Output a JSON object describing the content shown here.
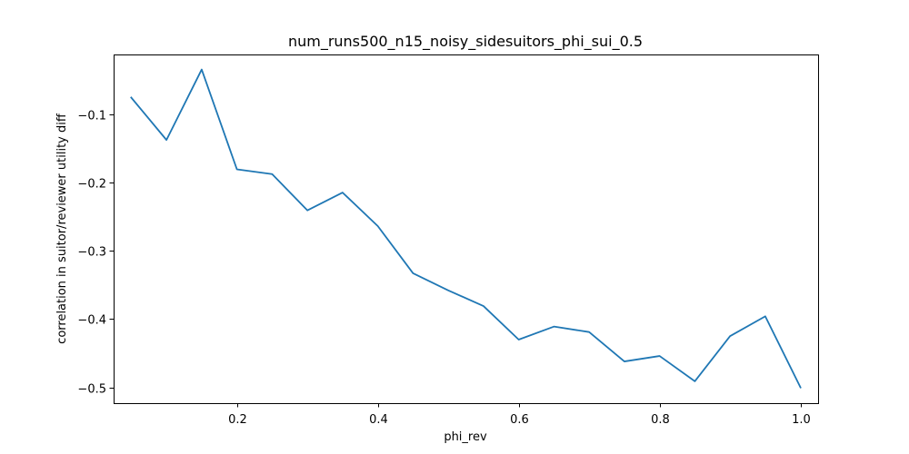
{
  "chart_data": {
    "type": "line",
    "title": "num_runs500_n15_noisy_sidesuitors_phi_sui_0.5",
    "xlabel": "phi_rev",
    "ylabel": "correlation in suitor/reviewer utility diff",
    "xlim": [
      0.025,
      1.025
    ],
    "ylim": [
      -0.523,
      -0.013
    ],
    "xticks": [
      0.2,
      0.4,
      0.6,
      0.8,
      1.0
    ],
    "xtick_labels": [
      "0.2",
      "0.4",
      "0.6",
      "0.8",
      "1.0"
    ],
    "yticks": [
      -0.1,
      -0.2,
      -0.3,
      -0.4,
      -0.5
    ],
    "ytick_labels": [
      "−0.1",
      "−0.2",
      "−0.3",
      "−0.4",
      "−0.5"
    ],
    "grid": false,
    "series": [
      {
        "color": "#1f77b4",
        "x": [
          0.05,
          0.1,
          0.15,
          0.2,
          0.25,
          0.3,
          0.35,
          0.4,
          0.45,
          0.5,
          0.55,
          0.6,
          0.65,
          0.7,
          0.75,
          0.8,
          0.85,
          0.9,
          0.95,
          1.0
        ],
        "y": [
          -0.076,
          -0.138,
          -0.035,
          -0.181,
          -0.188,
          -0.241,
          -0.215,
          -0.264,
          -0.333,
          -0.358,
          -0.381,
          -0.43,
          -0.411,
          -0.419,
          -0.462,
          -0.454,
          -0.491,
          -0.425,
          -0.396,
          -0.5
        ]
      }
    ]
  }
}
